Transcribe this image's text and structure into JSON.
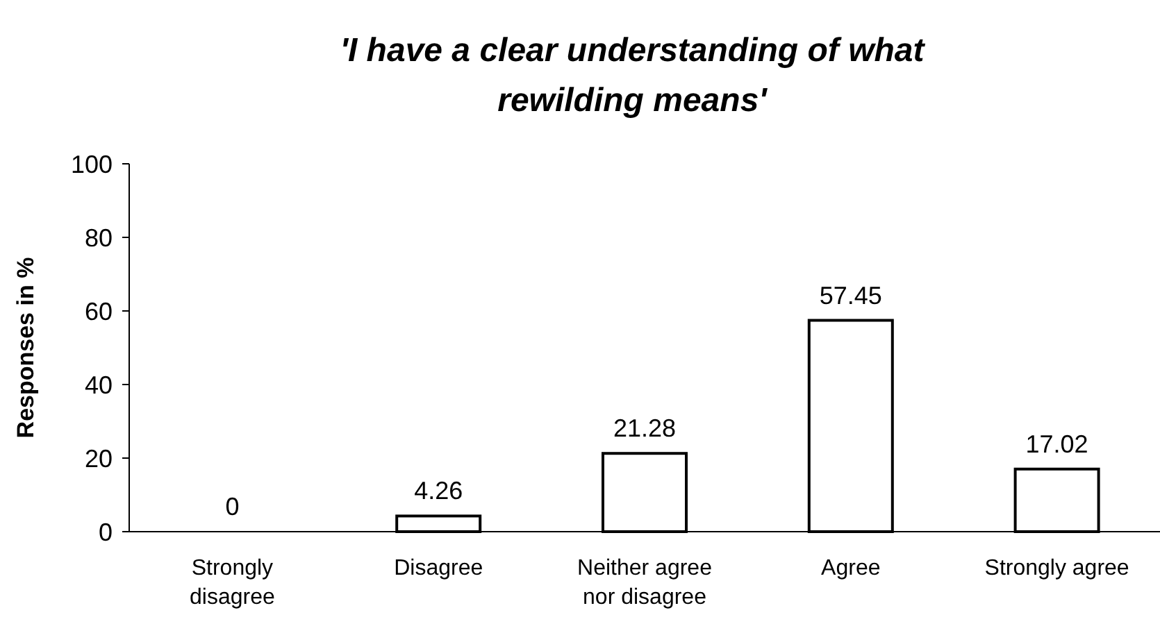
{
  "chart_data": {
    "type": "bar",
    "title": "'I have a clear understanding of what rewilding means'",
    "ylabel": "Responses in %",
    "categories": [
      "Strongly disagree",
      "Disagree",
      "Neither agree nor disagree",
      "Agree",
      "Strongly agree"
    ],
    "values": [
      0,
      4.26,
      21.28,
      57.45,
      17.02
    ],
    "color": "#ffffff",
    "ylim": [
      0,
      100
    ],
    "yticks": [
      0,
      20,
      40,
      60,
      80,
      100
    ],
    "grid": false,
    "data_labels": true
  }
}
